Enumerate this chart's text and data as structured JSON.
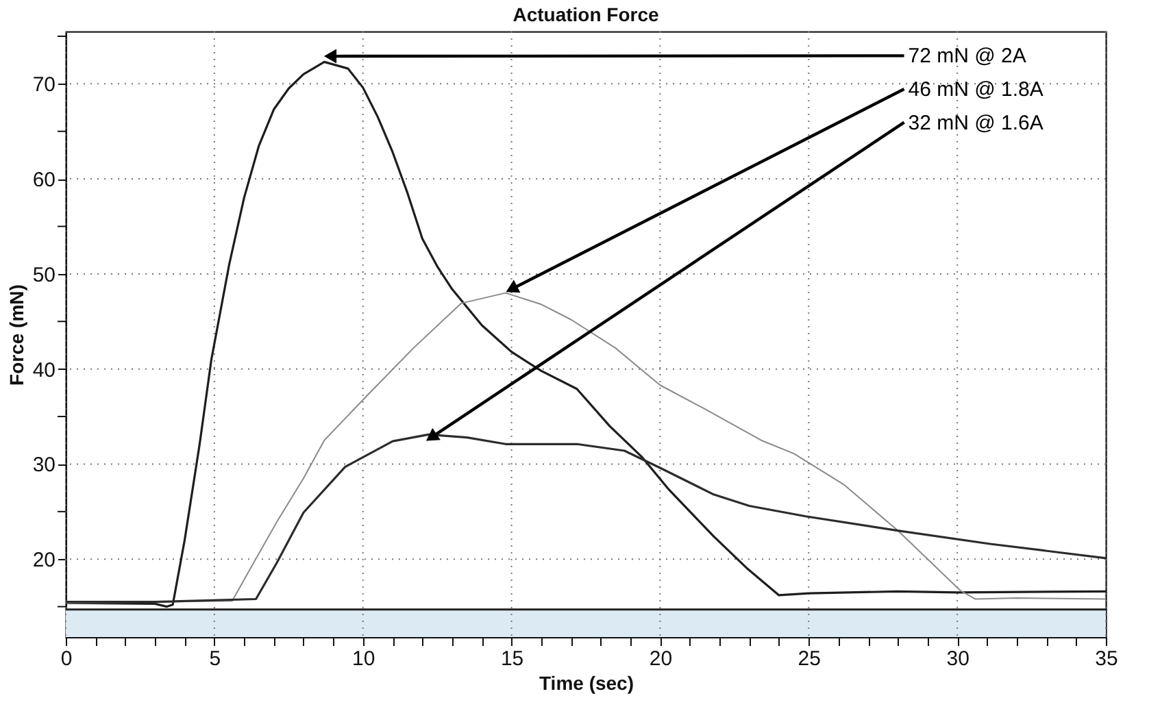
{
  "chart_data": {
    "type": "line",
    "title": "Actuation Force",
    "xlabel": "Time (sec)",
    "ylabel": "Force (mN)",
    "xlim": [
      0,
      35
    ],
    "ylim": [
      11.8,
      75.5
    ],
    "xticks": [
      0,
      {
        "value": 1,
        "label": null
      },
      {
        "value": 2,
        "label": null
      },
      {
        "value": 3,
        "label": null
      },
      {
        "value": 4,
        "label": null
      },
      5,
      {
        "value": 6,
        "label": null
      },
      {
        "value": 7,
        "label": null
      },
      {
        "value": 8,
        "label": null
      },
      {
        "value": 9,
        "label": null
      },
      10,
      {
        "value": 11,
        "label": null
      },
      {
        "value": 12,
        "label": null
      },
      {
        "value": 13,
        "label": null
      },
      {
        "value": 14,
        "label": null
      },
      15,
      {
        "value": 16,
        "label": null
      },
      {
        "value": 17,
        "label": null
      },
      {
        "value": 18,
        "label": null
      },
      {
        "value": 19,
        "label": null
      },
      20,
      {
        "value": 21,
        "label": null
      },
      {
        "value": 22,
        "label": null
      },
      {
        "value": 23,
        "label": null
      },
      {
        "value": 24,
        "label": null
      },
      25,
      {
        "value": 26,
        "label": null
      },
      {
        "value": 27,
        "label": null
      },
      {
        "value": 28,
        "label": null
      },
      {
        "value": 29,
        "label": null
      },
      30,
      {
        "value": 31,
        "label": null
      },
      {
        "value": 32,
        "label": null
      },
      {
        "value": 33,
        "label": null
      },
      {
        "value": 34,
        "label": null
      },
      35
    ],
    "yticks": [
      {
        "value": 15,
        "label": null
      },
      20,
      {
        "value": 25,
        "label": null
      },
      30,
      {
        "value": 35,
        "label": null
      },
      40,
      {
        "value": 45,
        "label": null
      },
      50,
      {
        "value": 55,
        "label": null
      },
      60,
      {
        "value": 65,
        "label": null
      },
      70,
      {
        "value": 75,
        "label": null
      }
    ],
    "grid": true,
    "marker": "none",
    "line_style": "solid",
    "series": [
      {
        "color": "#1e1e1e",
        "x": [
          0,
          3,
          3.4,
          3.6,
          4,
          4.5,
          4.9,
          5.5,
          6,
          6.5,
          7,
          7.5,
          8,
          8.7,
          9.5,
          10,
          10.5,
          11,
          11.5,
          12,
          12.5,
          13,
          14,
          15,
          16,
          17.2,
          18.3,
          19.4,
          20.3,
          21.8,
          22.9,
          24,
          25,
          28,
          30,
          35
        ],
        "values": [
          15.4,
          15.3,
          15.0,
          15.2,
          22,
          32,
          41,
          51,
          58,
          63.5,
          67.3,
          69.5,
          71,
          72.3,
          71.6,
          69.6,
          66.5,
          62.8,
          58.5,
          53.7,
          50.8,
          48.4,
          44.6,
          41.8,
          39.8,
          37.9,
          34,
          30.7,
          27.3,
          22.4,
          19.1,
          16.2,
          16.4,
          16.6,
          16.5,
          16.6
        ]
      },
      {
        "color": "#8a8a8a",
        "x": [
          0,
          3,
          5.6,
          6.3,
          7.1,
          8,
          8.7,
          10.2,
          11.7,
          13.3,
          14.8,
          16,
          17,
          18.5,
          20,
          21.5,
          23.4,
          24.5,
          26.2,
          28,
          30.1,
          30.6,
          32,
          35
        ],
        "values": [
          15.4,
          15.5,
          15.6,
          19.5,
          23.9,
          28.5,
          32.5,
          37.4,
          42.2,
          46.9,
          48,
          46.8,
          45.2,
          42.2,
          38.3,
          35.8,
          32.5,
          31.1,
          27.8,
          23,
          16.7,
          15.8,
          15.9,
          15.8
        ]
      },
      {
        "color": "#2c2c2c",
        "x": [
          0,
          3,
          6.4,
          7.1,
          8,
          9.4,
          11,
          12.2,
          13.5,
          14.8,
          15.7,
          17.2,
          18.8,
          20,
          21.8,
          23,
          24.9,
          28,
          31.1,
          35
        ],
        "values": [
          15.5,
          15.5,
          15.8,
          19.6,
          24.9,
          29.7,
          32.4,
          33.1,
          32.8,
          32.1,
          32.1,
          32.1,
          31.4,
          29.6,
          26.8,
          25.6,
          24.5,
          23,
          21.6,
          20.1
        ]
      }
    ],
    "annotations": [
      {
        "text": "72 mN @ 2A",
        "x": 8.9,
        "y": 72.9
      },
      {
        "text": "46 mN @ 1.8A",
        "x": 15.0,
        "y": 48.4
      },
      {
        "text": "32 mN @ 1.6A",
        "x": 12.3,
        "y": 32.8
      }
    ],
    "bands": [
      {
        "axis": "y",
        "from": 11.8,
        "to": 14.7,
        "color": "#dceaf4"
      }
    ],
    "ref_lines": [
      {
        "axis": "y",
        "value": 14.7,
        "color": "#222222"
      }
    ]
  }
}
